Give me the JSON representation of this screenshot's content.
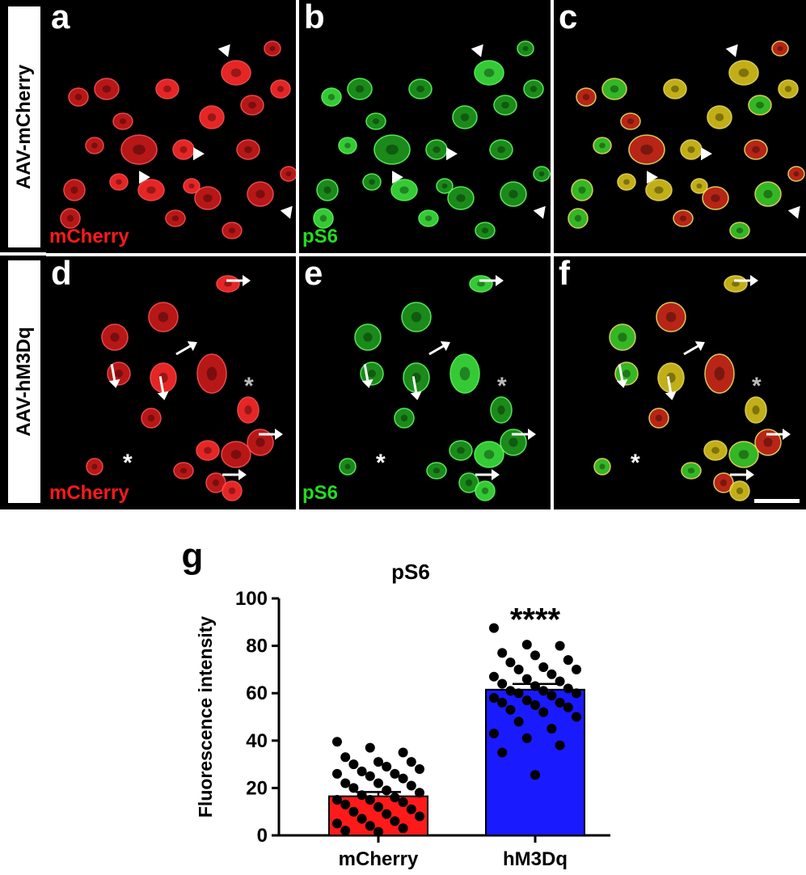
{
  "rows": [
    {
      "label": "AAV-mCherry"
    },
    {
      "label": "AAV-hM3Dq"
    }
  ],
  "panels": [
    {
      "letter": "a",
      "stain": "mCherry",
      "channel": "red"
    },
    {
      "letter": "b",
      "stain": "pS6",
      "channel": "green"
    },
    {
      "letter": "c",
      "stain": "",
      "channel": "merge"
    },
    {
      "letter": "d",
      "stain": "mCherry",
      "channel": "red"
    },
    {
      "letter": "e",
      "stain": "pS6",
      "channel": "green"
    },
    {
      "letter": "f",
      "stain": "",
      "channel": "merge"
    }
  ],
  "chart_data": {
    "panel_letter": "g",
    "type": "bar",
    "title": "pS6",
    "xlabel": "",
    "ylabel": "Fluorescence intensity",
    "ylim": [
      0,
      100
    ],
    "yticks": [
      0,
      20,
      40,
      60,
      80,
      100
    ],
    "categories": [
      "mCherry",
      "hM3Dq"
    ],
    "values": [
      16.5,
      61.5
    ],
    "sem": [
      1.8,
      2.4
    ],
    "bar_colors": [
      "#ff1a1a",
      "#1a1aff"
    ],
    "significance": "****",
    "points": [
      [
        39.5,
        37,
        35,
        33,
        31,
        31,
        30,
        29,
        28,
        27,
        26,
        26,
        25,
        24,
        22,
        22,
        21,
        20,
        19,
        18,
        17,
        16,
        15,
        15,
        14,
        13,
        12,
        11,
        10,
        9,
        8,
        7,
        6,
        5,
        4,
        3,
        2,
        1.5
      ],
      [
        87.5,
        80.5,
        80,
        77,
        76,
        74,
        73,
        71,
        70,
        70,
        68,
        67,
        66,
        65,
        64,
        63,
        62,
        61,
        61,
        60,
        60,
        59,
        58,
        57,
        56,
        56,
        55,
        54,
        53,
        52,
        50,
        48,
        45,
        43,
        41,
        38,
        35,
        25.5
      ]
    ]
  }
}
